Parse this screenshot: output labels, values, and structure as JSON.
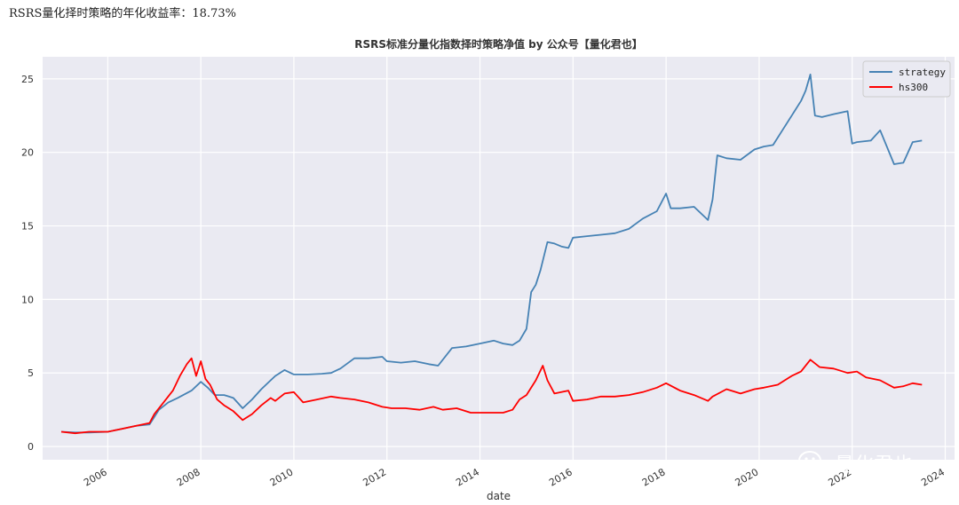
{
  "header": {
    "text": "RSRS量化择时策略的年化收益率：18.73%"
  },
  "watermark": {
    "text": "量化君也",
    "icon": "wechat-icon"
  },
  "chart_data": {
    "type": "line",
    "title": "RSRS标准分量化指数择时策略净值  by 公众号【量化君也】",
    "xlabel": "date",
    "ylabel": "",
    "xlim": [
      2004.6,
      2024.2
    ],
    "ylim": [
      -0.9,
      26.5
    ],
    "x_ticks": [
      "2006",
      "2008",
      "2010",
      "2012",
      "2014",
      "2016",
      "2018",
      "2020",
      "2022",
      "2024"
    ],
    "x_tick_values": [
      2006,
      2008,
      2010,
      2012,
      2014,
      2016,
      2018,
      2020,
      2022,
      2024
    ],
    "y_ticks": [
      "0",
      "5",
      "10",
      "15",
      "20",
      "25"
    ],
    "y_tick_values": [
      0,
      5,
      10,
      15,
      20,
      25
    ],
    "grid": true,
    "legend_position": "top-right",
    "colors": {
      "plot_bg": "#eaeaf2",
      "grid": "#ffffff"
    },
    "series": [
      {
        "name": "strategy",
        "color": "#4682b4",
        "x": [
          2005.0,
          2005.3,
          2005.6,
          2006.0,
          2006.3,
          2006.6,
          2006.9,
          2007.1,
          2007.3,
          2007.5,
          2007.8,
          2008.0,
          2008.15,
          2008.3,
          2008.5,
          2008.7,
          2008.9,
          2009.1,
          2009.3,
          2009.5,
          2009.6,
          2009.8,
          2010.0,
          2010.3,
          2010.6,
          2010.8,
          2011.0,
          2011.3,
          2011.6,
          2011.9,
          2012.0,
          2012.3,
          2012.6,
          2012.9,
          2013.1,
          2013.4,
          2013.7,
          2014.0,
          2014.3,
          2014.5,
          2014.7,
          2014.85,
          2015.0,
          2015.1,
          2015.2,
          2015.3,
          2015.45,
          2015.6,
          2015.75,
          2015.9,
          2016.0,
          2016.3,
          2016.6,
          2016.9,
          2017.2,
          2017.5,
          2017.8,
          2018.0,
          2018.1,
          2018.3,
          2018.6,
          2018.9,
          2019.0,
          2019.1,
          2019.3,
          2019.6,
          2019.9,
          2020.1,
          2020.3,
          2020.5,
          2020.7,
          2020.9,
          2021.0,
          2021.1,
          2021.2,
          2021.35,
          2021.6,
          2021.9,
          2022.0,
          2022.1,
          2022.4,
          2022.6,
          2022.9,
          2023.1,
          2023.3,
          2023.5
        ],
        "values": [
          1.0,
          0.95,
          0.95,
          1.0,
          1.2,
          1.4,
          1.5,
          2.5,
          3.0,
          3.3,
          3.8,
          4.4,
          4.0,
          3.5,
          3.5,
          3.3,
          2.6,
          3.2,
          3.9,
          4.5,
          4.8,
          5.2,
          4.9,
          4.9,
          4.95,
          5.0,
          5.3,
          6.0,
          6.0,
          6.1,
          5.8,
          5.7,
          5.8,
          5.6,
          5.5,
          6.7,
          6.8,
          7.0,
          7.2,
          7.0,
          6.9,
          7.2,
          8.0,
          10.5,
          11.0,
          12.0,
          13.9,
          13.8,
          13.6,
          13.5,
          14.2,
          14.3,
          14.4,
          14.5,
          14.8,
          15.5,
          16.0,
          17.2,
          16.2,
          16.2,
          16.3,
          15.4,
          16.8,
          19.8,
          19.6,
          19.5,
          20.2,
          20.4,
          20.5,
          21.5,
          22.5,
          23.5,
          24.2,
          25.3,
          22.5,
          22.4,
          22.6,
          22.8,
          20.6,
          20.7,
          20.8,
          21.5,
          19.2,
          19.3,
          20.7,
          20.8
        ]
      },
      {
        "name": "hs300",
        "color": "#ff0000",
        "x": [
          2005.0,
          2005.3,
          2005.6,
          2006.0,
          2006.3,
          2006.6,
          2006.9,
          2007.0,
          2007.2,
          2007.4,
          2007.55,
          2007.7,
          2007.8,
          2007.9,
          2008.0,
          2008.1,
          2008.2,
          2008.35,
          2008.5,
          2008.7,
          2008.9,
          2009.1,
          2009.3,
          2009.5,
          2009.6,
          2009.8,
          2010.0,
          2010.2,
          2010.5,
          2010.8,
          2011.0,
          2011.3,
          2011.6,
          2011.9,
          2012.1,
          2012.4,
          2012.7,
          2013.0,
          2013.2,
          2013.5,
          2013.8,
          2014.0,
          2014.3,
          2014.5,
          2014.7,
          2014.85,
          2015.0,
          2015.2,
          2015.35,
          2015.45,
          2015.6,
          2015.75,
          2015.9,
          2016.0,
          2016.3,
          2016.6,
          2016.9,
          2017.2,
          2017.5,
          2017.8,
          2018.0,
          2018.3,
          2018.6,
          2018.9,
          2019.0,
          2019.3,
          2019.6,
          2019.9,
          2020.1,
          2020.4,
          2020.7,
          2020.9,
          2021.1,
          2021.3,
          2021.6,
          2021.9,
          2022.1,
          2022.3,
          2022.6,
          2022.9,
          2023.1,
          2023.3,
          2023.5
        ],
        "values": [
          1.0,
          0.9,
          1.0,
          1.0,
          1.2,
          1.4,
          1.6,
          2.2,
          3.0,
          3.8,
          4.8,
          5.6,
          6.0,
          4.8,
          5.8,
          4.6,
          4.2,
          3.2,
          2.8,
          2.4,
          1.8,
          2.2,
          2.8,
          3.3,
          3.1,
          3.6,
          3.7,
          3.0,
          3.2,
          3.4,
          3.3,
          3.2,
          3.0,
          2.7,
          2.6,
          2.6,
          2.5,
          2.7,
          2.5,
          2.6,
          2.3,
          2.3,
          2.3,
          2.3,
          2.5,
          3.2,
          3.5,
          4.5,
          5.5,
          4.5,
          3.6,
          3.7,
          3.8,
          3.1,
          3.2,
          3.4,
          3.4,
          3.5,
          3.7,
          4.0,
          4.3,
          3.8,
          3.5,
          3.1,
          3.4,
          3.9,
          3.6,
          3.9,
          4.0,
          4.2,
          4.8,
          5.1,
          5.9,
          5.4,
          5.3,
          5.0,
          5.1,
          4.7,
          4.5,
          4.0,
          4.1,
          4.3,
          4.2
        ]
      }
    ]
  }
}
